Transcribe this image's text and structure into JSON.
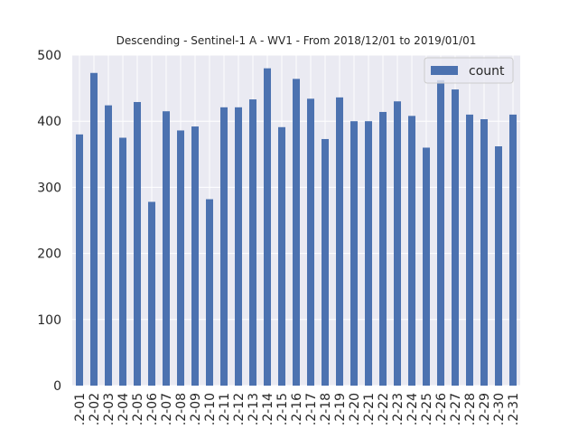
{
  "chart_data": {
    "type": "bar",
    "title": "Descending - Sentinel-1 A - WV1 - From 2018/12/01 to 2019/01/01",
    "xlabel": "",
    "ylabel": "",
    "ylim": [
      0,
      500
    ],
    "yticks": [
      "0",
      "100",
      "200",
      "300",
      "400",
      "500"
    ],
    "grid": true,
    "legend_position": "top-right",
    "categories": [
      ".2-01",
      ".2-02",
      ".2-03",
      ".2-04",
      ".2-05",
      ".2-06",
      ".2-07",
      ".2-08",
      ".2-09",
      ".2-10",
      ".2-11",
      ".2-12",
      ".2-13",
      ".2-14",
      ".2-15",
      ".2-16",
      ".2-17",
      ".2-18",
      ".2-19",
      ".2-20",
      ".2-21",
      ".2-22",
      ".2-23",
      ".2-24",
      ".2-25",
      ".2-26",
      ".2-27",
      ".2-28",
      ".2-29",
      ".2-30",
      ".2-31"
    ],
    "series": [
      {
        "name": "count",
        "color": "#4c72b0",
        "values": [
          380,
          473,
          424,
          375,
          429,
          278,
          415,
          386,
          392,
          282,
          421,
          421,
          433,
          480,
          391,
          464,
          434,
          373,
          436,
          400,
          400,
          414,
          430,
          408,
          360,
          462,
          448,
          410,
          403,
          362,
          410
        ]
      }
    ],
    "colors": {
      "plot_background": "#eaeaf2",
      "grid": "#ffffff"
    }
  }
}
